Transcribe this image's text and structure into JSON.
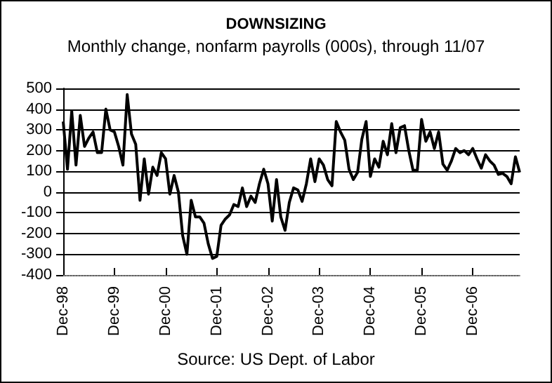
{
  "chart_data": {
    "type": "line",
    "title": "DOWNSIZING",
    "subtitle": "Monthly change, nonfarm payrolls (000s), through 11/07",
    "annotations": [
      "Source: US Dept. of Labor"
    ],
    "categories": [
      "Dec-98",
      null,
      null,
      null,
      null,
      null,
      null,
      null,
      null,
      null,
      null,
      null,
      "Dec-99",
      null,
      null,
      null,
      null,
      null,
      null,
      null,
      null,
      null,
      null,
      null,
      "Dec-00",
      null,
      null,
      null,
      null,
      null,
      null,
      null,
      null,
      null,
      null,
      null,
      "Dec-01",
      null,
      null,
      null,
      null,
      null,
      null,
      null,
      null,
      null,
      null,
      null,
      "Dec-02",
      null,
      null,
      null,
      null,
      null,
      null,
      null,
      null,
      null,
      null,
      null,
      "Dec-03",
      null,
      null,
      null,
      null,
      null,
      null,
      null,
      null,
      null,
      null,
      null,
      "Dec-04",
      null,
      null,
      null,
      null,
      null,
      null,
      null,
      null,
      null,
      null,
      null,
      "Dec-05",
      null,
      null,
      null,
      null,
      null,
      null,
      null,
      null,
      null,
      null,
      null,
      "Dec-06",
      null,
      null,
      null,
      null,
      null,
      null,
      null,
      null,
      null,
      null,
      null
    ],
    "series": [
      {
        "color": "#000000",
        "values": [
          340,
          110,
          390,
          130,
          370,
          220,
          260,
          290,
          190,
          190,
          400,
          300,
          290,
          220,
          130,
          470,
          280,
          230,
          -40,
          160,
          -10,
          120,
          80,
          190,
          160,
          -10,
          80,
          0,
          -210,
          -300,
          -40,
          -120,
          -120,
          -150,
          -250,
          -320,
          -310,
          -160,
          -130,
          -110,
          -60,
          -70,
          20,
          -70,
          -20,
          -50,
          40,
          110,
          40,
          -140,
          60,
          -120,
          -185,
          -50,
          20,
          10,
          -45,
          40,
          160,
          50,
          160,
          130,
          60,
          30,
          340,
          290,
          250,
          110,
          60,
          95,
          255,
          340,
          75,
          160,
          120,
          245,
          180,
          330,
          190,
          310,
          320,
          200,
          105,
          105,
          350,
          245,
          290,
          210,
          290,
          135,
          105,
          150,
          210,
          190,
          200,
          180,
          210,
          160,
          115,
          180,
          150,
          130,
          85,
          90,
          75,
          40,
          170,
          95
        ]
      }
    ],
    "ylim": [
      -400,
      500
    ],
    "yticks": [
      -400,
      -300,
      -200,
      -100,
      0,
      100,
      200,
      300,
      400,
      500
    ],
    "grid": "y",
    "marker": "none",
    "line_style": "solid"
  }
}
